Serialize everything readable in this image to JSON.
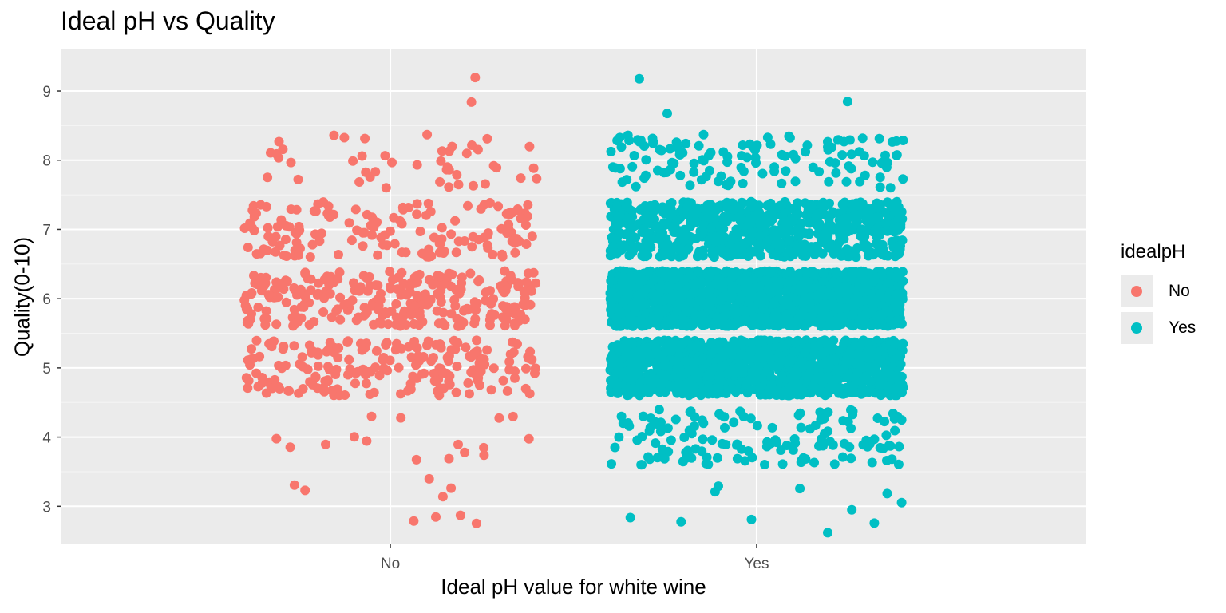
{
  "chart_data": {
    "type": "scatter",
    "title": "Ideal pH vs Quality",
    "xlabel": "Ideal pH value for white wine",
    "ylabel": "Quality(0-10)",
    "categories": [
      "No",
      "Yes"
    ],
    "y_ticks": [
      3,
      4,
      5,
      6,
      7,
      8,
      9
    ],
    "ylim": [
      2.45,
      9.6
    ],
    "jitter": "jittered scatter (strip plot); horizontal jitter ~±0.4 category width, vertical jitter ~±0.4",
    "grid": true,
    "legend": {
      "title": "idealpH",
      "position": "right",
      "entries": [
        {
          "label": "No",
          "color": "#F8766D"
        },
        {
          "label": "Yes",
          "color": "#00BFC4"
        }
      ]
    },
    "series": [
      {
        "name": "No",
        "color": "#F8766D",
        "category": "No",
        "quality_counts": {
          "3": 9,
          "4": 16,
          "5": 200,
          "6": 280,
          "7": 150,
          "8": 45,
          "9": 2
        }
      },
      {
        "name": "Yes",
        "color": "#00BFC4",
        "category": "Yes",
        "quality_counts": {
          "3": 11,
          "4": 140,
          "5": 1250,
          "6": 1900,
          "7": 730,
          "8": 130,
          "9": 3
        }
      }
    ]
  }
}
